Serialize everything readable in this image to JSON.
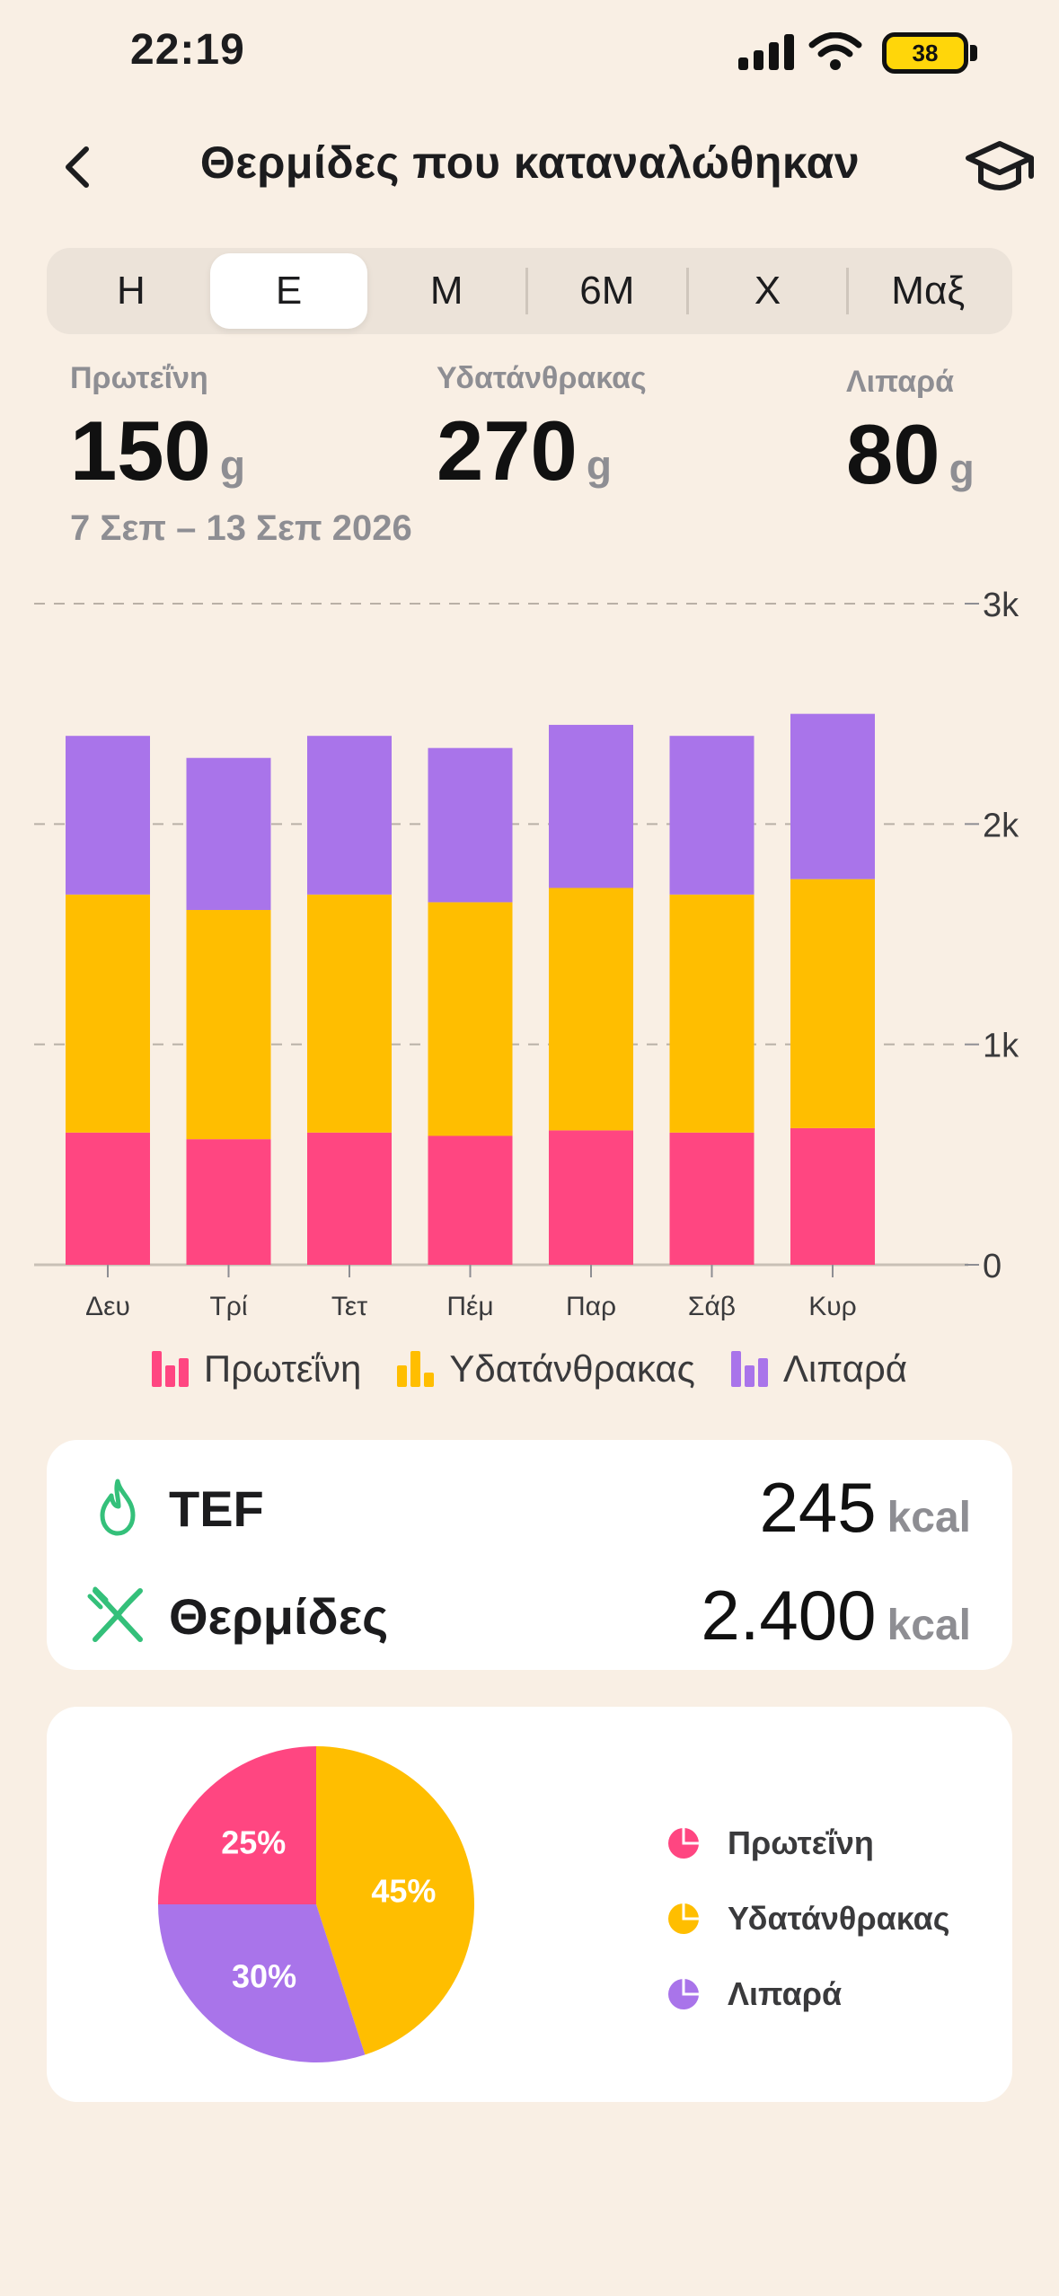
{
  "status_bar": {
    "time": "22:19",
    "battery": "38"
  },
  "header": {
    "title": "Θερμίδες που καταναλώθηκαν"
  },
  "segments": {
    "items": [
      "Η",
      "Ε",
      "Μ",
      "6Μ",
      "Χ",
      "Μαξ"
    ],
    "selected": "Ε"
  },
  "stats": {
    "protein": {
      "label": "Πρωτεΐνη",
      "value": "150",
      "unit": "g"
    },
    "carbs": {
      "label": "Υδατάνθρακας",
      "value": "270",
      "unit": "g"
    },
    "fat": {
      "label": "Λιπαρά",
      "value": "80",
      "unit": "g"
    },
    "date_range": "7 Σεπ – 13 Σεπ 2026"
  },
  "colors": {
    "protein": "#ff4681",
    "carbs": "#ffbe00",
    "fat": "#a974ea",
    "accent_green": "#34c07a"
  },
  "chart_data": {
    "type": "bar",
    "stacked": true,
    "categories": [
      "Δευ",
      "Τρί",
      "Τετ",
      "Πέμ",
      "Παρ",
      "Σάβ",
      "Κυρ"
    ],
    "series": [
      {
        "name": "Πρωτεΐνη",
        "values": [
          600,
          570,
          600,
          585,
          610,
          600,
          620
        ]
      },
      {
        "name": "Υδατάνθρακας",
        "values": [
          1080,
          1040,
          1080,
          1060,
          1100,
          1080,
          1130
        ]
      },
      {
        "name": "Λιπαρά",
        "values": [
          720,
          690,
          720,
          700,
          740,
          720,
          750
        ]
      }
    ],
    "y_ticks": [
      "0",
      "1k",
      "2k",
      "3k"
    ],
    "ylim": [
      0,
      3000
    ],
    "grid": true,
    "legend_position": "bottom"
  },
  "legend": {
    "protein": "Πρωτεΐνη",
    "carbs": "Υδατάνθρακας",
    "fat": "Λιπαρά"
  },
  "energy": {
    "tef": {
      "label": "TEF",
      "value": "245",
      "unit": "kcal",
      "icon": "flame-icon"
    },
    "calories": {
      "label": "Θερμίδες",
      "value": "2.400",
      "unit": "kcal",
      "icon": "fork-knife-icon"
    }
  },
  "pie": {
    "slices": [
      {
        "name": "Υδατάνθρακας",
        "percent": 45,
        "label": "45%"
      },
      {
        "name": "Λιπαρά",
        "percent": 30,
        "label": "30%"
      },
      {
        "name": "Πρωτεΐνη",
        "percent": 25,
        "label": "25%"
      }
    ],
    "legend": [
      "Πρωτεΐνη",
      "Υδατάνθρακας",
      "Λιπαρά"
    ]
  }
}
